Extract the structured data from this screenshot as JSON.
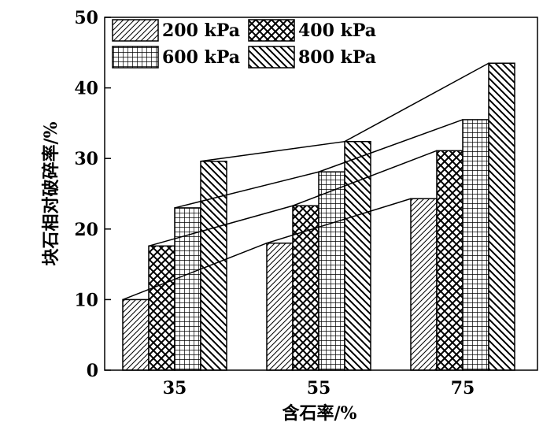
{
  "chart_data": {
    "type": "bar",
    "title": "",
    "xlabel": "含石率/%",
    "ylabel": "块石相对破碎率/%",
    "categories": [
      "35",
      "55",
      "75"
    ],
    "ylim": [
      0,
      50
    ],
    "yticks": [
      "0",
      "10",
      "20",
      "30",
      "40",
      "50"
    ],
    "grid": false,
    "legend_position": "top-left",
    "series": [
      {
        "name": "200 kPa",
        "pattern": "diagonal-forward",
        "values": [
          10.0,
          18.0,
          24.3
        ]
      },
      {
        "name": "400 kPa",
        "pattern": "crosshatch-diagonal",
        "values": [
          17.6,
          23.3,
          31.1
        ]
      },
      {
        "name": "600 kPa",
        "pattern": "grid",
        "values": [
          23.0,
          28.1,
          35.5
        ]
      },
      {
        "name": "800 kPa",
        "pattern": "diagonal-backward",
        "values": [
          29.6,
          32.4,
          43.5
        ]
      }
    ],
    "trend_lines": true
  }
}
